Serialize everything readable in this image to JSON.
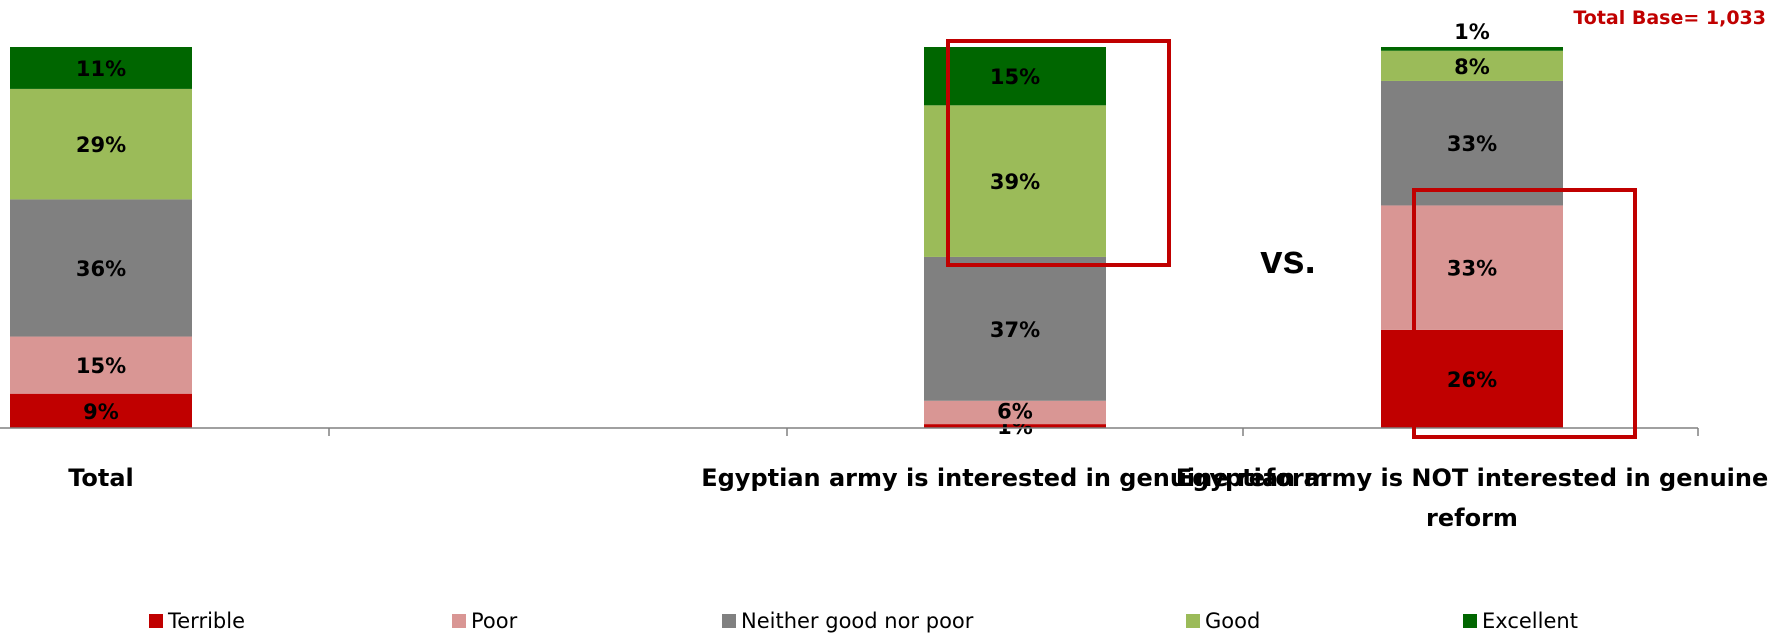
{
  "chart_data": {
    "type": "bar",
    "stacked": true,
    "categories": [
      "Total",
      "Egyptian army is interested in genuine reform",
      "Egyptian army is NOT interested in genuine reform"
    ],
    "series": [
      {
        "name": "Terrible",
        "color": "#C00000",
        "values": [
          9,
          1,
          26
        ]
      },
      {
        "name": "Poor",
        "color": "#D99694",
        "values": [
          15,
          6,
          33
        ]
      },
      {
        "name": "Neither good nor poor",
        "color": "#808080",
        "values": [
          36,
          37,
          33
        ]
      },
      {
        "name": "Good",
        "color": "#9BBB59",
        "values": [
          29,
          39,
          8
        ]
      },
      {
        "name": "Excellent",
        "color": "#006600",
        "values": [
          11,
          15,
          1
        ]
      }
    ],
    "value_suffix": "%",
    "ylim": [
      0,
      100
    ],
    "grid": false,
    "legend_position": "bottom",
    "annotations": {
      "base_note": "Total Base= 1,033",
      "vs_label": "vs."
    },
    "highlight_color": "#C00000"
  }
}
